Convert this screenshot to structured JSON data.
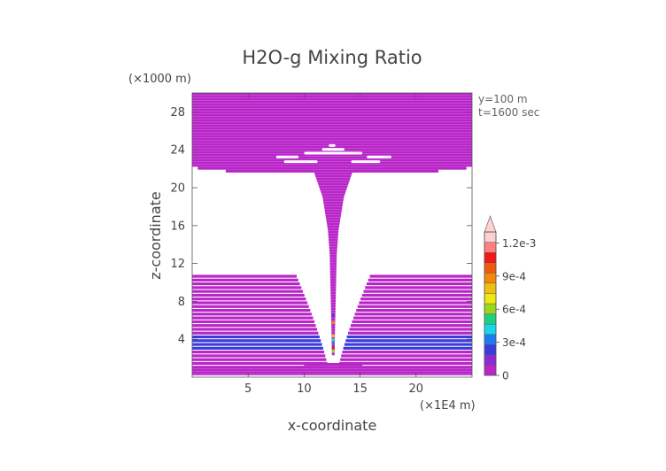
{
  "chart_data": {
    "type": "heatmap",
    "title": "H2O-g Mixing Ratio",
    "xlabel": "x-coordinate",
    "ylabel": "z-coordinate",
    "x_unit": "(×1E4 m)",
    "y_unit": "(×1000 m)",
    "info_lines": [
      "y=100 m",
      "t=1600 sec"
    ],
    "xlim": [
      0,
      25
    ],
    "ylim": [
      0,
      30
    ],
    "x_ticks": [
      5,
      10,
      15,
      20
    ],
    "y_ticks": [
      4,
      8,
      12,
      16,
      20,
      24,
      28
    ],
    "colorbar": {
      "min": 0,
      "max": 0.0013,
      "labels": [
        "0",
        "3e-4",
        "6e-4",
        "9e-4",
        "1.2e-3"
      ],
      "label_values": [
        0,
        0.0003,
        0.0006,
        0.0009,
        0.0012
      ],
      "colors": [
        "#b826c8",
        "#8a2bd6",
        "#3c3cdc",
        "#1e7cf0",
        "#18d8e8",
        "#20d080",
        "#9ad820",
        "#f0e810",
        "#f0c010",
        "#f08a08",
        "#f05a10",
        "#f01818",
        "#ff8080",
        "#ffd0d0"
      ],
      "extend_max": true
    },
    "regions": {
      "background_value": 8e-05,
      "upper_band_z": [
        22.2,
        30
      ],
      "lower_band_z": [
        0.4,
        10.6
      ],
      "moist_layer_z": [
        2.8,
        4.4
      ],
      "moist_value": 0.0003,
      "column_x": 12.6,
      "column_base_z": 2.3
    }
  }
}
